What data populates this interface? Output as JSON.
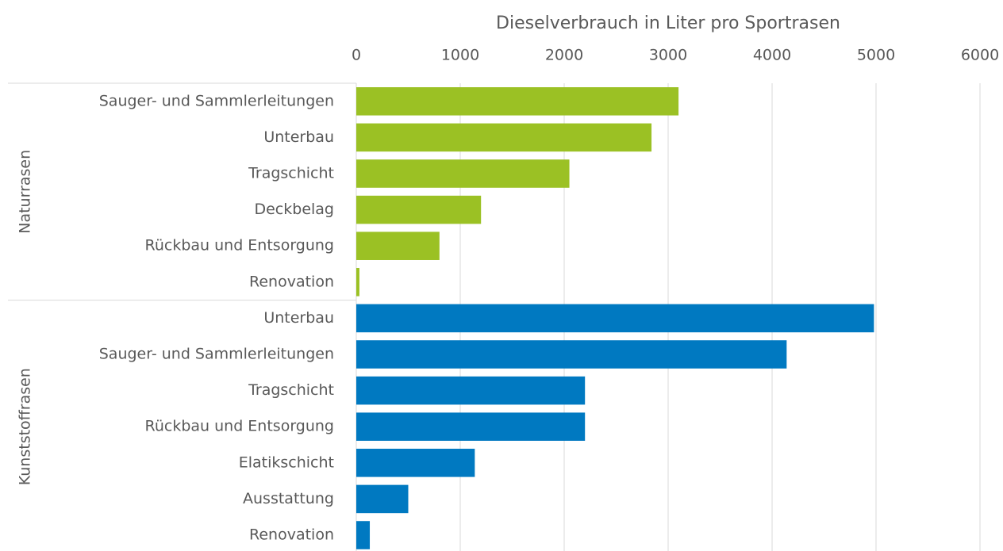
{
  "chart_data": {
    "type": "bar",
    "orientation": "horizontal",
    "title": "Dieselverbrauch in Liter pro Sportrasen",
    "xlim": [
      0,
      6000
    ],
    "xticks": [
      0,
      1000,
      2000,
      3000,
      4000,
      5000,
      6000
    ],
    "grid": true,
    "groups": [
      {
        "name": "Naturrasen",
        "color": "#9bc124",
        "categories": [
          "Sauger- und Sammlerleitungen",
          "Unterbau",
          "Tragschicht",
          "Deckbelag",
          "Rückbau und Entsorgung",
          "Renovation"
        ],
        "values": [
          3100,
          2840,
          2050,
          1200,
          800,
          30
        ]
      },
      {
        "name": "Kunststoffrasen",
        "color": "#0079c1",
        "categories": [
          "Unterbau",
          "Sauger- und Sammlerleitungen",
          "Tragschicht",
          "Rückbau und Entsorgung",
          "Elatikschicht",
          "Ausstattung",
          "Renovation"
        ],
        "values": [
          4980,
          4140,
          2200,
          2200,
          1140,
          500,
          130
        ]
      }
    ]
  }
}
